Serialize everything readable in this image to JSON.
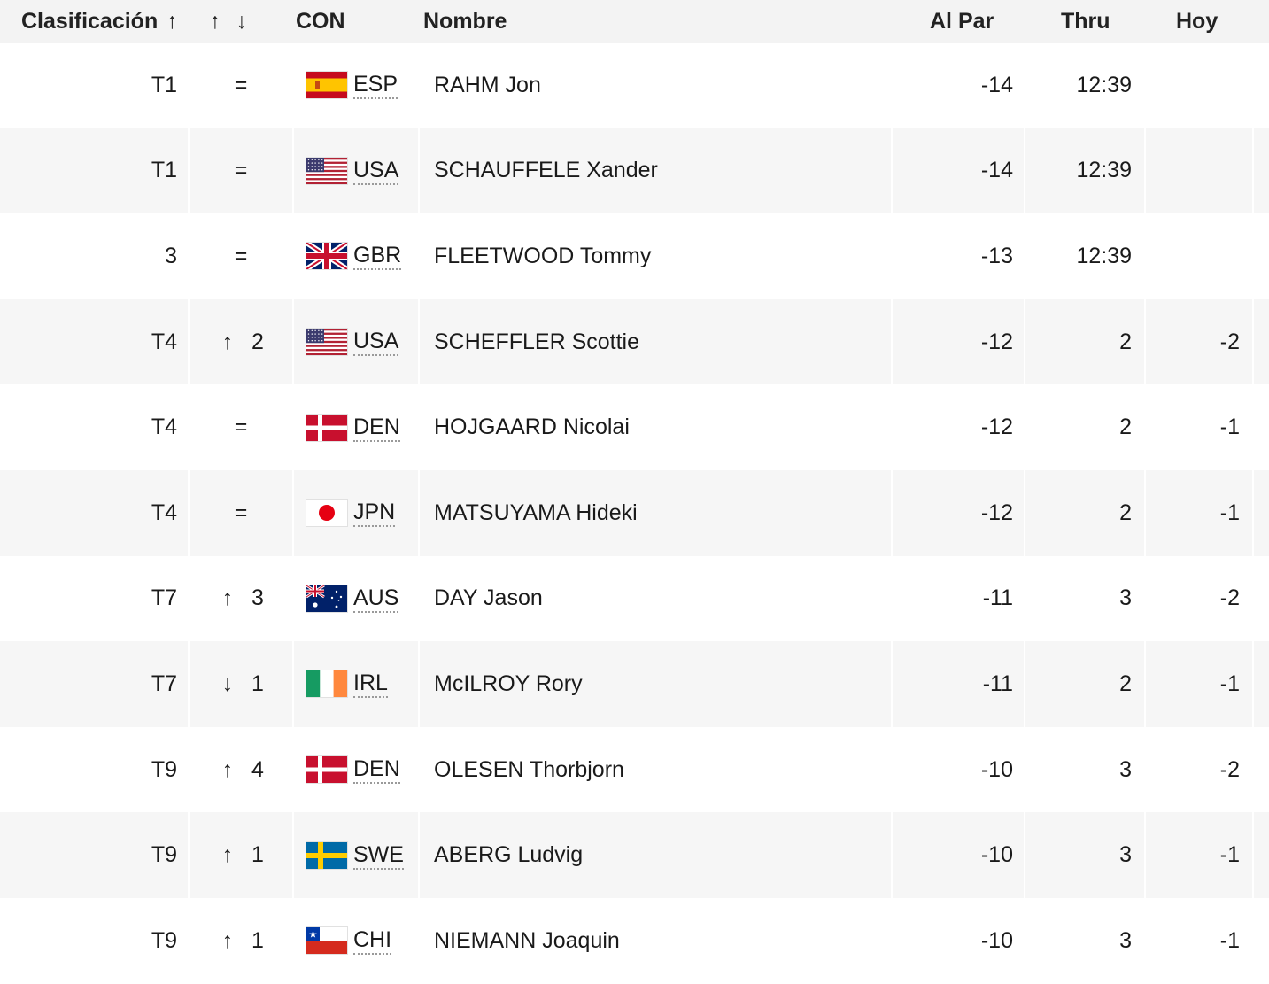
{
  "header": {
    "rank_label": "Clasificación",
    "rank_sort_icon": "arrow-up-icon",
    "move_up_icon": "arrow-up-icon",
    "move_down_icon": "arrow-down-icon",
    "country_label": "CON",
    "name_label": "Nombre",
    "to_par_label": "Al Par",
    "thru_label": "Thru",
    "today_label": "Hoy"
  },
  "rows": [
    {
      "rank": "T1",
      "move_dir": "same",
      "move": "",
      "country": "ESP",
      "flag": "flag-esp-icon",
      "name": "RAHM Jon",
      "to_par": "-14",
      "thru": "12:39",
      "today": ""
    },
    {
      "rank": "T1",
      "move_dir": "same",
      "move": "",
      "country": "USA",
      "flag": "flag-usa-icon",
      "name": "SCHAUFFELE Xander",
      "to_par": "-14",
      "thru": "12:39",
      "today": ""
    },
    {
      "rank": "3",
      "move_dir": "same",
      "move": "",
      "country": "GBR",
      "flag": "flag-gbr-icon",
      "name": "FLEETWOOD Tommy",
      "to_par": "-13",
      "thru": "12:39",
      "today": ""
    },
    {
      "rank": "T4",
      "move_dir": "up",
      "move": "2",
      "country": "USA",
      "flag": "flag-usa-icon",
      "name": "SCHEFFLER Scottie",
      "to_par": "-12",
      "thru": "2",
      "today": "-2"
    },
    {
      "rank": "T4",
      "move_dir": "same",
      "move": "",
      "country": "DEN",
      "flag": "flag-den-icon",
      "name": "HOJGAARD Nicolai",
      "to_par": "-12",
      "thru": "2",
      "today": "-1"
    },
    {
      "rank": "T4",
      "move_dir": "same",
      "move": "",
      "country": "JPN",
      "flag": "flag-jpn-icon",
      "name": "MATSUYAMA Hideki",
      "to_par": "-12",
      "thru": "2",
      "today": "-1"
    },
    {
      "rank": "T7",
      "move_dir": "up",
      "move": "3",
      "country": "AUS",
      "flag": "flag-aus-icon",
      "name": "DAY Jason",
      "to_par": "-11",
      "thru": "3",
      "today": "-2"
    },
    {
      "rank": "T7",
      "move_dir": "down",
      "move": "1",
      "country": "IRL",
      "flag": "flag-irl-icon",
      "name": "McILROY Rory",
      "to_par": "-11",
      "thru": "2",
      "today": "-1"
    },
    {
      "rank": "T9",
      "move_dir": "up",
      "move": "4",
      "country": "DEN",
      "flag": "flag-den-icon",
      "name": "OLESEN Thorbjorn",
      "to_par": "-10",
      "thru": "3",
      "today": "-2"
    },
    {
      "rank": "T9",
      "move_dir": "up",
      "move": "1",
      "country": "SWE",
      "flag": "flag-swe-icon",
      "name": "ABERG Ludvig",
      "to_par": "-10",
      "thru": "3",
      "today": "-1"
    },
    {
      "rank": "T9",
      "move_dir": "up",
      "move": "1",
      "country": "CHI",
      "flag": "flag-chi-icon",
      "name": "NIEMANN Joaquin",
      "to_par": "-10",
      "thru": "3",
      "today": "-1"
    }
  ],
  "symbols": {
    "same": "=",
    "up": "↑",
    "down": "↓"
  },
  "colors": {
    "header_bg": "#f3f3f3",
    "row_alt_bg": "#f6f6f6",
    "text": "#1a1a1a"
  }
}
